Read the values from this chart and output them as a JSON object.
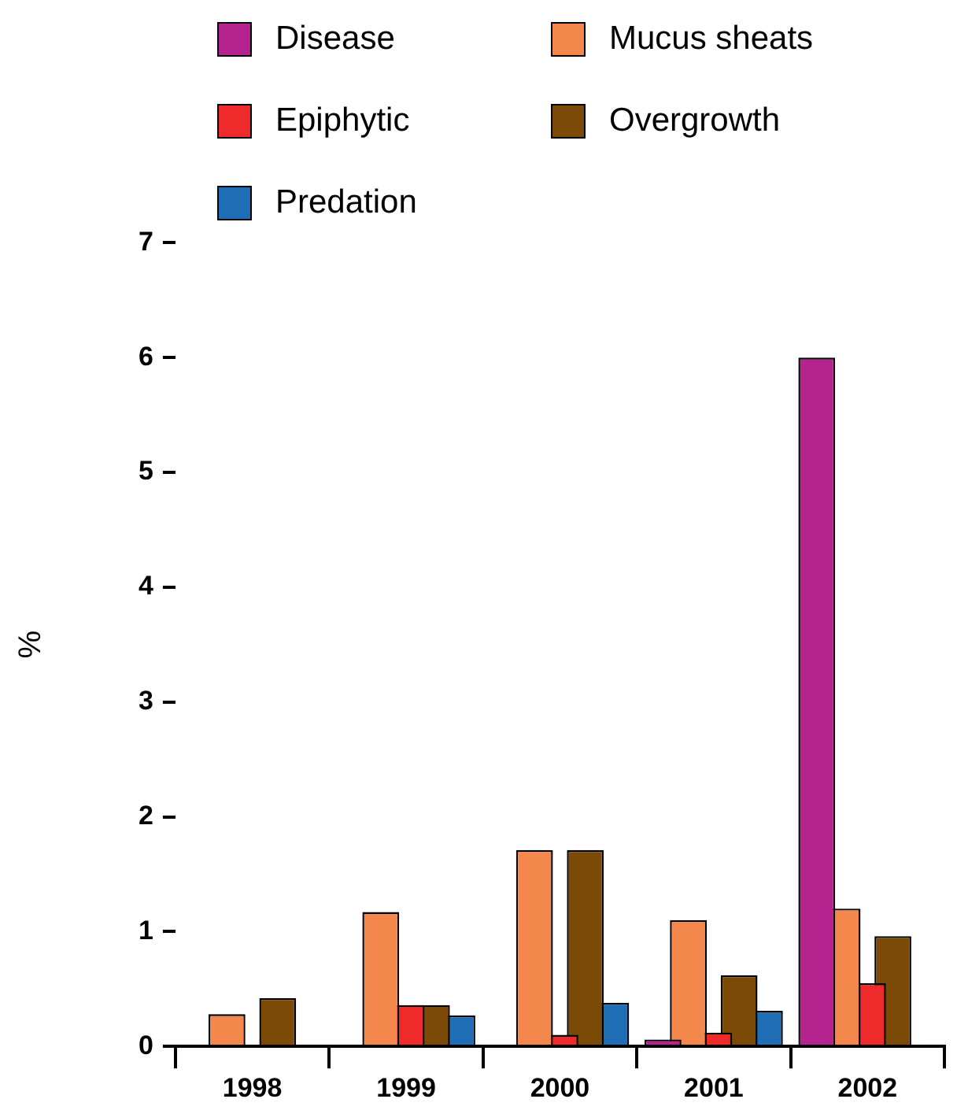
{
  "chart_data": {
    "type": "bar",
    "ylabel": "%",
    "categories": [
      "1998",
      "1999",
      "2000",
      "2001",
      "2002"
    ],
    "ylim": [
      0,
      7
    ],
    "yticks": [
      0,
      1,
      2,
      3,
      4,
      5,
      6,
      7
    ],
    "grid": false,
    "legend": "top",
    "series": [
      {
        "name": "Disease",
        "color": "#b5248e",
        "values": [
          null,
          null,
          null,
          0.06,
          6.0
        ]
      },
      {
        "name": "Mucus sheats",
        "color": "#f4874b",
        "values": [
          0.28,
          1.17,
          1.71,
          1.1,
          1.2
        ]
      },
      {
        "name": "Epiphytic",
        "color": "#ee2a2a",
        "values": [
          null,
          0.36,
          0.1,
          0.12,
          0.55
        ]
      },
      {
        "name": "Overgrowth",
        "color": "#7a4a06",
        "values": [
          0.42,
          0.36,
          1.71,
          0.62,
          0.96
        ]
      },
      {
        "name": "Predation",
        "color": "#1f6db5",
        "values": [
          null,
          0.27,
          0.38,
          0.31,
          null
        ]
      }
    ]
  }
}
